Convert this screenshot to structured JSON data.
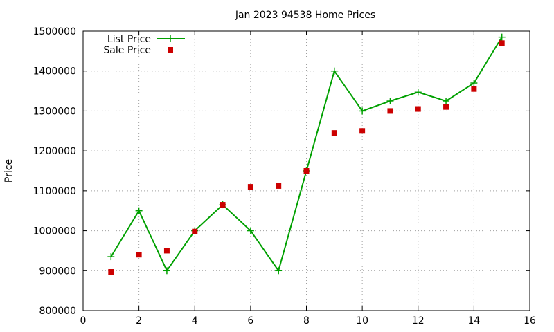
{
  "chart_data": {
    "type": "line",
    "title": "Jan 2023 94538 Home Prices",
    "xlabel": "",
    "ylabel": "Price",
    "xlim": [
      0,
      16
    ],
    "ylim": [
      800000,
      1500000
    ],
    "x_ticks": [
      0,
      2,
      4,
      6,
      8,
      10,
      12,
      14,
      16
    ],
    "y_ticks": [
      800000,
      900000,
      1000000,
      1100000,
      1200000,
      1300000,
      1400000,
      1500000
    ],
    "grid": true,
    "legend_position": "top-left",
    "series": [
      {
        "name": "List Price",
        "style": "line-with-plus-markers",
        "color": "#00a000",
        "points": [
          [
            1,
            935000
          ],
          [
            2,
            1050000
          ],
          [
            3,
            900000
          ],
          [
            4,
            1000000
          ],
          [
            5,
            1065000
          ],
          [
            6,
            1000000
          ],
          [
            7,
            900000
          ],
          [
            8,
            1150000
          ],
          [
            9,
            1400000
          ],
          [
            10,
            1300000
          ],
          [
            11,
            1325000
          ],
          [
            12,
            1347000
          ],
          [
            13,
            1325000
          ],
          [
            14,
            1370000
          ],
          [
            15,
            1485000
          ]
        ]
      },
      {
        "name": "Sale Price",
        "style": "square-markers",
        "color": "#cc0000",
        "points": [
          [
            1,
            897000
          ],
          [
            2,
            940000
          ],
          [
            3,
            950000
          ],
          [
            4,
            998000
          ],
          [
            5,
            1065000
          ],
          [
            6,
            1110000
          ],
          [
            7,
            1112000
          ],
          [
            8,
            1150000
          ],
          [
            9,
            1245000
          ],
          [
            10,
            1250000
          ],
          [
            11,
            1300000
          ],
          [
            12,
            1305000
          ],
          [
            13,
            1310000
          ],
          [
            14,
            1355000
          ],
          [
            15,
            1470000
          ]
        ]
      }
    ]
  }
}
